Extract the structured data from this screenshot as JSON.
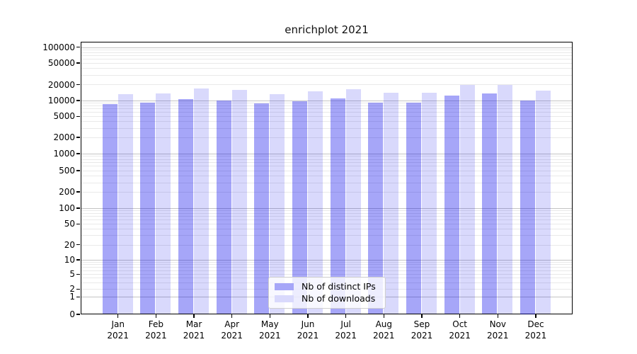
{
  "title": "enrichplot 2021",
  "chart_data": {
    "type": "bar",
    "title": "enrichplot 2021",
    "x_categories": [
      "Jan 2021",
      "Feb 2021",
      "Mar 2021",
      "Apr 2021",
      "May 2021",
      "Jun 2021",
      "Jul 2021",
      "Aug 2021",
      "Sep 2021",
      "Oct 2021",
      "Nov 2021",
      "Dec 2021"
    ],
    "series": [
      {
        "name": "Nb of distinct IPs",
        "color": "#a6a6f8",
        "fill": "rgba(0,0,235,0.35)",
        "values": [
          8500,
          9100,
          10400,
          9900,
          8700,
          9600,
          10900,
          8900,
          8900,
          12300,
          13400,
          10000
        ]
      },
      {
        "name": "Nb of downloads",
        "color": "#d9d9fc",
        "fill": "rgba(0,0,235,0.15)",
        "values": [
          13100,
          13500,
          16800,
          15800,
          13100,
          14500,
          16100,
          14000,
          13900,
          19400,
          19500,
          15000
        ]
      }
    ],
    "yscale": "symlog",
    "y_ticks": [
      0,
      1,
      2,
      5,
      10,
      20,
      50,
      100,
      200,
      500,
      1000,
      2000,
      5000,
      10000,
      20000,
      50000,
      100000
    ],
    "ylim": [
      0,
      200000
    ],
    "grid": true,
    "legend_position": "lower center"
  }
}
